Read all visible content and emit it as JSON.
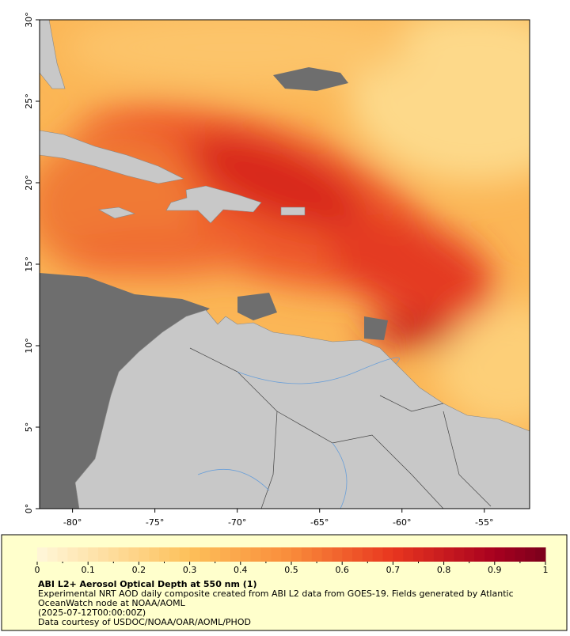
{
  "map": {
    "xlim": [
      -82,
      -52.25
    ],
    "ylim": [
      0,
      30
    ],
    "xticks": [
      {
        "value": -80,
        "label": "-80°"
      },
      {
        "value": -75,
        "label": "-75°"
      },
      {
        "value": -70,
        "label": "-70°"
      },
      {
        "value": -65,
        "label": "-65°"
      },
      {
        "value": -60,
        "label": "-60°"
      },
      {
        "value": -55,
        "label": "-55°"
      }
    ],
    "yticks": [
      {
        "value": 0,
        "label": "0°"
      },
      {
        "value": 5,
        "label": "5°"
      },
      {
        "value": 10,
        "label": "10°"
      },
      {
        "value": 15,
        "label": "15°"
      },
      {
        "value": 20,
        "label": "20°"
      },
      {
        "value": 25,
        "label": "25°"
      },
      {
        "value": 30,
        "label": "30°"
      }
    ]
  },
  "colorbar": {
    "lim": [
      0,
      1
    ],
    "ticks": [
      0,
      0.1,
      0.2,
      0.3,
      0.4,
      0.5,
      0.6,
      0.7,
      0.8,
      0.9,
      1
    ],
    "colormap": [
      {
        "value": 0,
        "color": "#fff7da"
      },
      {
        "value": 0.3,
        "color": "#fdc05a"
      },
      {
        "value": 0.5,
        "color": "#f98b3a"
      },
      {
        "value": 0.7,
        "color": "#e8361f"
      },
      {
        "value": 0.9,
        "color": "#a8001f"
      },
      {
        "value": 1,
        "color": "#7a001c"
      }
    ]
  },
  "caption": {
    "title": "ABI L2+ Aerosol Optical Depth at 550 nm (1)",
    "lines": [
      "Experimental NRT AOD daily composite created from ABI L2 data from GOES-19. Fields generated by Atlantic",
      "OceanWatch node at NOAA/AOML",
      "(2025-07-12T00:00:00Z)",
      "Data courtesy of USDOC/NOAA/OAR/AOML/PHOD"
    ]
  }
}
